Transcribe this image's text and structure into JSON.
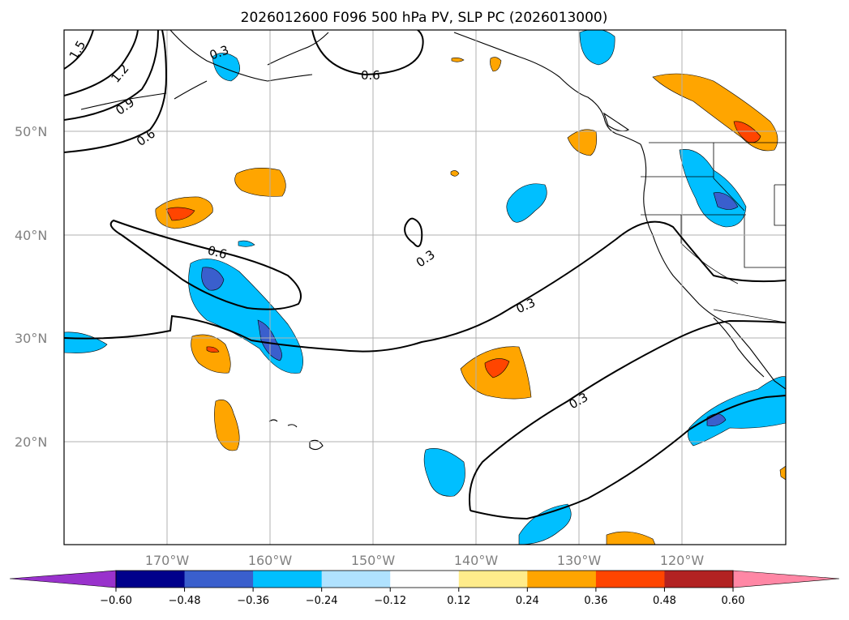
{
  "title": "2026012600 F096 500 hPa PV, SLP PC (2026013000)",
  "lat_labels": [
    "50°N",
    "40°N",
    "30°N",
    "20°N"
  ],
  "lon_labels": [
    "170°W",
    "160°W",
    "150°W",
    "140°W",
    "130°W",
    "120°W"
  ],
  "contour_labels": [
    "1.5",
    "1.2",
    "0.9",
    "0.6",
    "0.3",
    "0.6",
    "0.6",
    "0.3",
    "0.3",
    "0.3"
  ],
  "colorbar": {
    "ticks": [
      "−0.60",
      "−0.48",
      "−0.36",
      "−0.24",
      "−0.12",
      "0.12",
      "0.24",
      "0.36",
      "0.48",
      "0.60"
    ],
    "colors": {
      "extend_low": "#9932cc",
      "bins": [
        "#00008b",
        "#3a5fcd",
        "#00bfff",
        "#b0e2ff",
        "#ffffff",
        "#ffec8b",
        "#ffa500",
        "#ff4500",
        "#b22222"
      ],
      "extend_high": "#ff87a5"
    }
  },
  "colors": {
    "neg_light": "#b0e2ff",
    "neg_mid": "#00bfff",
    "neg_dark": "#3a5fcd",
    "pos_light": "#ffec8b",
    "pos_mid": "#ffa500",
    "pos_dark": "#ff4500",
    "grid": "#b0b0b0"
  }
}
